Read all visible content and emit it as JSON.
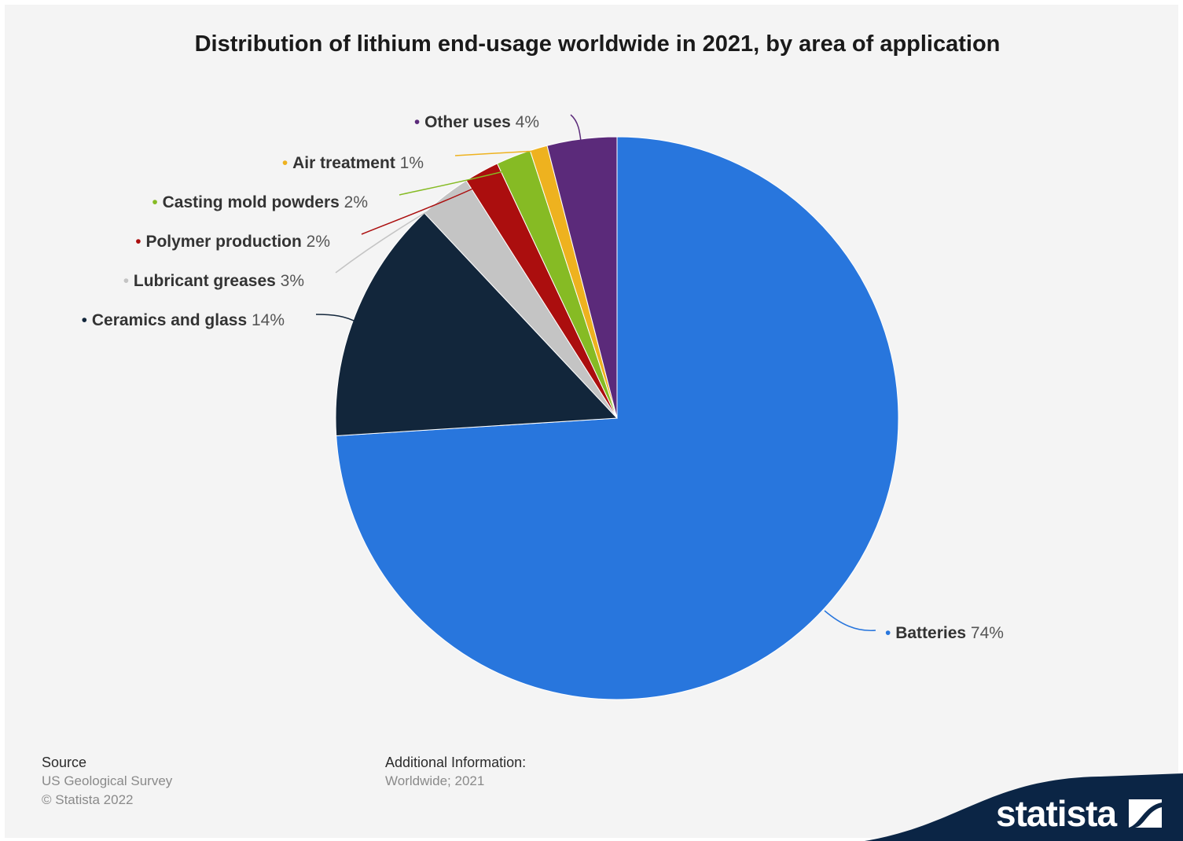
{
  "chart_data": {
    "type": "pie",
    "title": "Distribution of lithium end-usage worldwide in 2021, by area of application",
    "unit": "%",
    "slices": [
      {
        "name": "Batteries",
        "value": 74,
        "label": "74%",
        "color": "#2876dd"
      },
      {
        "name": "Ceramics and glass",
        "value": 14,
        "label": "14%",
        "color": "#12263b"
      },
      {
        "name": "Lubricant greases",
        "value": 3,
        "label": "3%",
        "color": "#c4c4c4"
      },
      {
        "name": "Polymer production",
        "value": 2,
        "label": "2%",
        "color": "#ab0e0e"
      },
      {
        "name": "Casting mold powders",
        "value": 2,
        "label": "2%",
        "color": "#86bb24"
      },
      {
        "name": "Air treatment",
        "value": 1,
        "label": "1%",
        "color": "#eeb21f"
      },
      {
        "name": "Other uses",
        "value": 4,
        "label": "4%",
        "color": "#5b2a7a"
      }
    ]
  },
  "footer": {
    "source_heading": "Source",
    "source_lines": [
      "US Geological Survey",
      "© Statista 2022"
    ],
    "info_heading": "Additional Information:",
    "info_lines": [
      "Worldwide; 2021"
    ]
  },
  "brand": {
    "name": "statista",
    "color": "#0b2545"
  }
}
